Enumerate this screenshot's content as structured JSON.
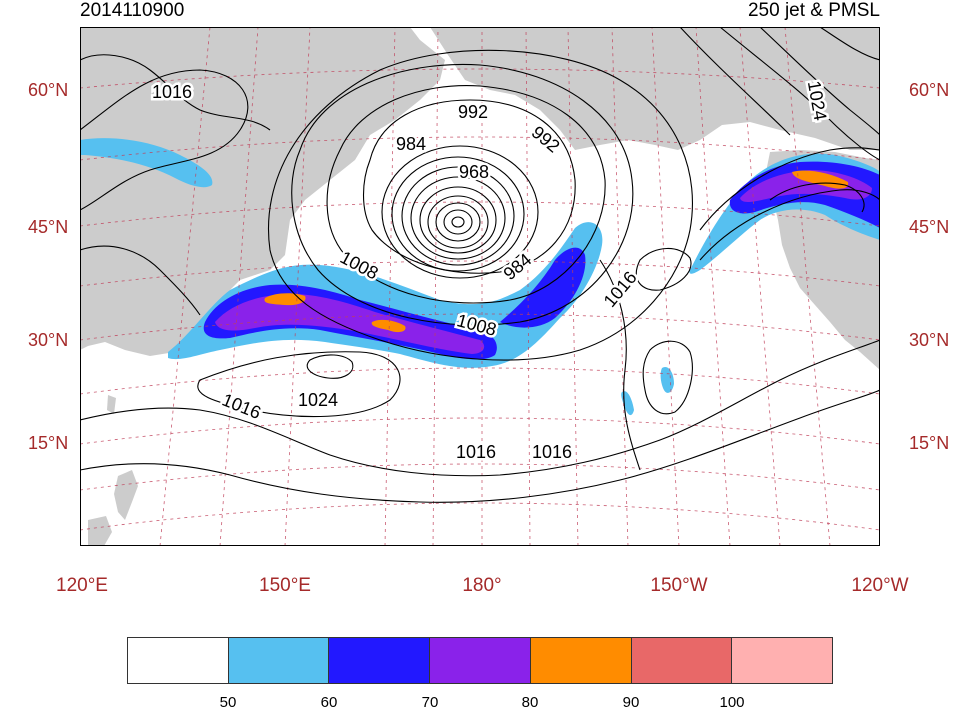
{
  "header": {
    "left_title": "2014110900",
    "right_title": "250 jet & PMSL"
  },
  "axes": {
    "lat_labels": [
      "60°N",
      "45°N",
      "30°N",
      "15°N"
    ],
    "lon_labels": [
      "120°E",
      "150°E",
      "180°",
      "150°W",
      "120°W"
    ]
  },
  "contours": {
    "variable": "PMSL",
    "labels": [
      "1016",
      "992",
      "984",
      "968",
      "992",
      "1024",
      "1008",
      "984",
      "1016",
      "1008",
      "1024",
      "1016",
      "1016",
      "1016"
    ]
  },
  "colorbar": {
    "variable": "250 jet",
    "ticks": [
      "50",
      "60",
      "70",
      "80",
      "90",
      "100"
    ],
    "colors": [
      "#ffffff",
      "#56c0f0",
      "#2218ff",
      "#8a22ea",
      "#ff8c00",
      "#e86868",
      "#ffb0b0"
    ]
  },
  "colors": {
    "land": "#cccccc",
    "graticule": "#c0405a",
    "axis_label": "#a52a2a"
  }
}
